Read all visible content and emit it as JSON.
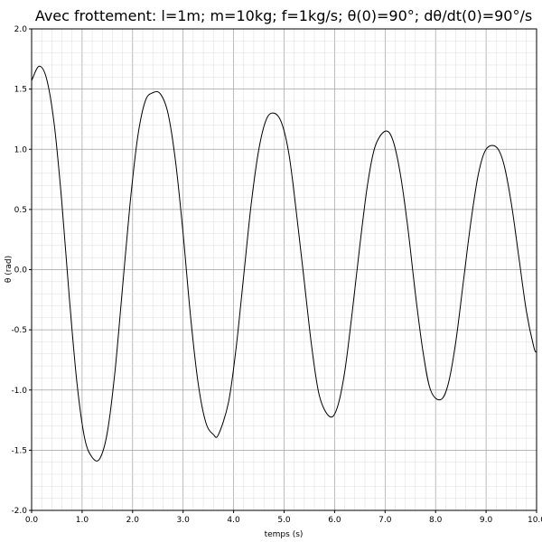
{
  "chart_data": {
    "type": "line",
    "title": "Avec frottement: l=1m; m=10kg; f=1kg/s; θ(0)=90°; dθ/dt(0)=90°/s",
    "xlabel": "temps (s)",
    "ylabel": "θ (rad)",
    "xlim": [
      0,
      10
    ],
    "ylim": [
      -2,
      2
    ],
    "xticks": [
      "0.0",
      "1.0",
      "2.0",
      "3.0",
      "4.0",
      "5.0",
      "6.0",
      "7.0",
      "8.0",
      "9.0",
      "10.0"
    ],
    "yticks": [
      "2.0",
      "1.5",
      "1.0",
      "0.5",
      "0.0",
      "-0.5",
      "-1.0",
      "-1.5",
      "-2.0"
    ],
    "grid": true,
    "series": [
      {
        "x": [
          0.0,
          0.15,
          0.3,
          0.45,
          0.6,
          0.75,
          0.9,
          1.05,
          1.2,
          1.35,
          1.5,
          1.65,
          1.8,
          1.95,
          2.1,
          2.25,
          2.4,
          2.55,
          2.7,
          2.85,
          3.0,
          3.15,
          3.3,
          3.45,
          3.6,
          3.7,
          3.9,
          4.05,
          4.2,
          4.35,
          4.5,
          4.65,
          4.8,
          4.95,
          5.1,
          5.25,
          5.4,
          5.55,
          5.7,
          5.9,
          6.05,
          6.2,
          6.35,
          6.5,
          6.65,
          6.8,
          7.0,
          7.15,
          7.3,
          7.45,
          7.6,
          7.75,
          7.9,
          8.1,
          8.25,
          8.4,
          8.55,
          8.7,
          8.85,
          9.0,
          9.2,
          9.35,
          9.5,
          9.65,
          9.8,
          9.95,
          10.0
        ],
        "y": [
          1.57,
          1.69,
          1.58,
          1.2,
          0.55,
          -0.25,
          -0.95,
          -1.4,
          -1.56,
          -1.57,
          -1.35,
          -0.85,
          -0.15,
          0.55,
          1.1,
          1.4,
          1.47,
          1.46,
          1.3,
          0.9,
          0.3,
          -0.4,
          -0.95,
          -1.27,
          -1.37,
          -1.37,
          -1.1,
          -0.65,
          -0.05,
          0.55,
          1.0,
          1.25,
          1.3,
          1.22,
          0.95,
          0.45,
          -0.1,
          -0.65,
          -1.05,
          -1.22,
          -1.15,
          -0.85,
          -0.35,
          0.2,
          0.7,
          1.02,
          1.15,
          1.08,
          0.8,
          0.35,
          -0.2,
          -0.68,
          -1.0,
          -1.08,
          -0.95,
          -0.6,
          -0.1,
          0.4,
          0.8,
          1.0,
          1.02,
          0.88,
          0.55,
          0.1,
          -0.35,
          -0.65,
          -0.68
        ]
      }
    ]
  }
}
